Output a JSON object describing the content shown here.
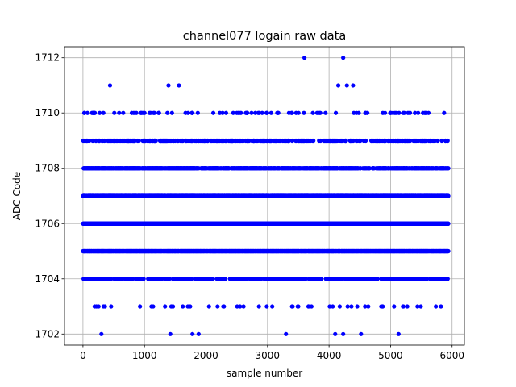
{
  "chart_data": {
    "type": "scatter",
    "title": "channel077 logain raw data",
    "xlabel": "sample number",
    "ylabel": "ADC Code",
    "xlim": [
      -300,
      6200
    ],
    "ylim": [
      1701.6,
      1712.4
    ],
    "xticks": [
      0,
      1000,
      2000,
      3000,
      4000,
      5000,
      6000
    ],
    "yticks": [
      1702,
      1704,
      1706,
      1708,
      1710,
      1712
    ],
    "grid": true,
    "marker_color": "#0000ff",
    "n_samples": 5940,
    "dense_levels": [
      1704,
      1705,
      1706,
      1707,
      1708,
      1709,
      1710
    ],
    "level_density": {
      "1703": 0.006,
      "1704": 0.06,
      "1705": 0.25,
      "1706": 0.34,
      "1707": 0.22,
      "1708": 0.1,
      "1709": 0.05,
      "1710": 0.012
    },
    "sparse_points": [
      {
        "x": 300,
        "y": 1702
      },
      {
        "x": 1420,
        "y": 1702
      },
      {
        "x": 1780,
        "y": 1702
      },
      {
        "x": 1880,
        "y": 1702
      },
      {
        "x": 3300,
        "y": 1702
      },
      {
        "x": 4100,
        "y": 1702
      },
      {
        "x": 4230,
        "y": 1702
      },
      {
        "x": 4520,
        "y": 1702
      },
      {
        "x": 5130,
        "y": 1702
      },
      {
        "x": 440,
        "y": 1711
      },
      {
        "x": 1390,
        "y": 1711
      },
      {
        "x": 1560,
        "y": 1711
      },
      {
        "x": 4150,
        "y": 1711
      },
      {
        "x": 4290,
        "y": 1711
      },
      {
        "x": 4390,
        "y": 1711
      },
      {
        "x": 3600,
        "y": 1712
      },
      {
        "x": 4230,
        "y": 1712
      }
    ]
  }
}
